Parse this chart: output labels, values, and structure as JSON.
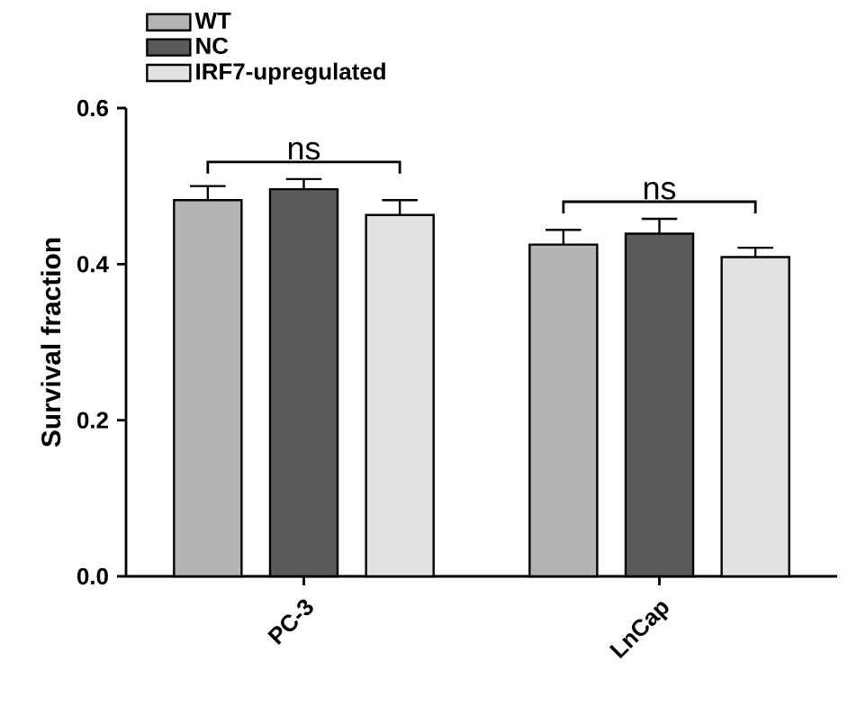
{
  "chart_data": {
    "type": "bar",
    "ylabel": "Survival fraction",
    "categories": [
      "PC-3",
      "LnCap"
    ],
    "series": [
      {
        "name": "WT",
        "color": "#b4b4b4",
        "values": [
          0.482,
          0.425
        ],
        "errors": [
          0.018,
          0.019
        ]
      },
      {
        "name": "NC",
        "color": "#5a5a5a",
        "values": [
          0.496,
          0.439
        ],
        "errors": [
          0.013,
          0.019
        ]
      },
      {
        "name": "IRF7-upregulated",
        "color": "#e2e2e2",
        "values": [
          0.463,
          0.409
        ],
        "errors": [
          0.019,
          0.012
        ]
      }
    ],
    "ylim": [
      0,
      0.6
    ],
    "yticks": [
      {
        "value": 0,
        "label": "0.0"
      },
      0.2,
      0.4,
      0.6
    ],
    "legend": "top left",
    "grid": false,
    "annotations": [
      "ns",
      "ns"
    ]
  }
}
